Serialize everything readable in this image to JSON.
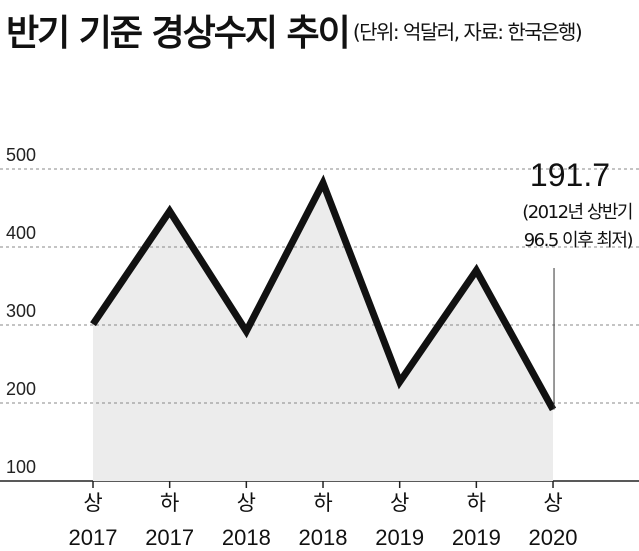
{
  "header": {
    "title": "반기 기준 경상수지 추이",
    "subtitle": "(단위: 억달러, 자료: 한국은행)"
  },
  "chart_data": {
    "type": "area",
    "categories": [
      "상 2017",
      "하 2017",
      "상 2018",
      "하 2018",
      "상 2019",
      "하 2019",
      "상 2020"
    ],
    "x_half_labels": [
      "상",
      "하",
      "상",
      "하",
      "상",
      "하",
      "상"
    ],
    "x_year_labels": [
      "2017",
      "2017",
      "2018",
      "2018",
      "2019",
      "2019",
      "2020"
    ],
    "values": [
      301,
      446,
      292,
      482,
      227,
      370,
      191.7
    ],
    "ylim": [
      100,
      550
    ],
    "yticks": [
      100,
      200,
      300,
      400,
      500
    ],
    "grid": true,
    "line_color": "#111111",
    "fill_color": "#ececec",
    "annotation": {
      "value_label": "191.7",
      "note_line1": "(2012년 상반기",
      "note_line2": "96.5 이후 최저)"
    }
  }
}
